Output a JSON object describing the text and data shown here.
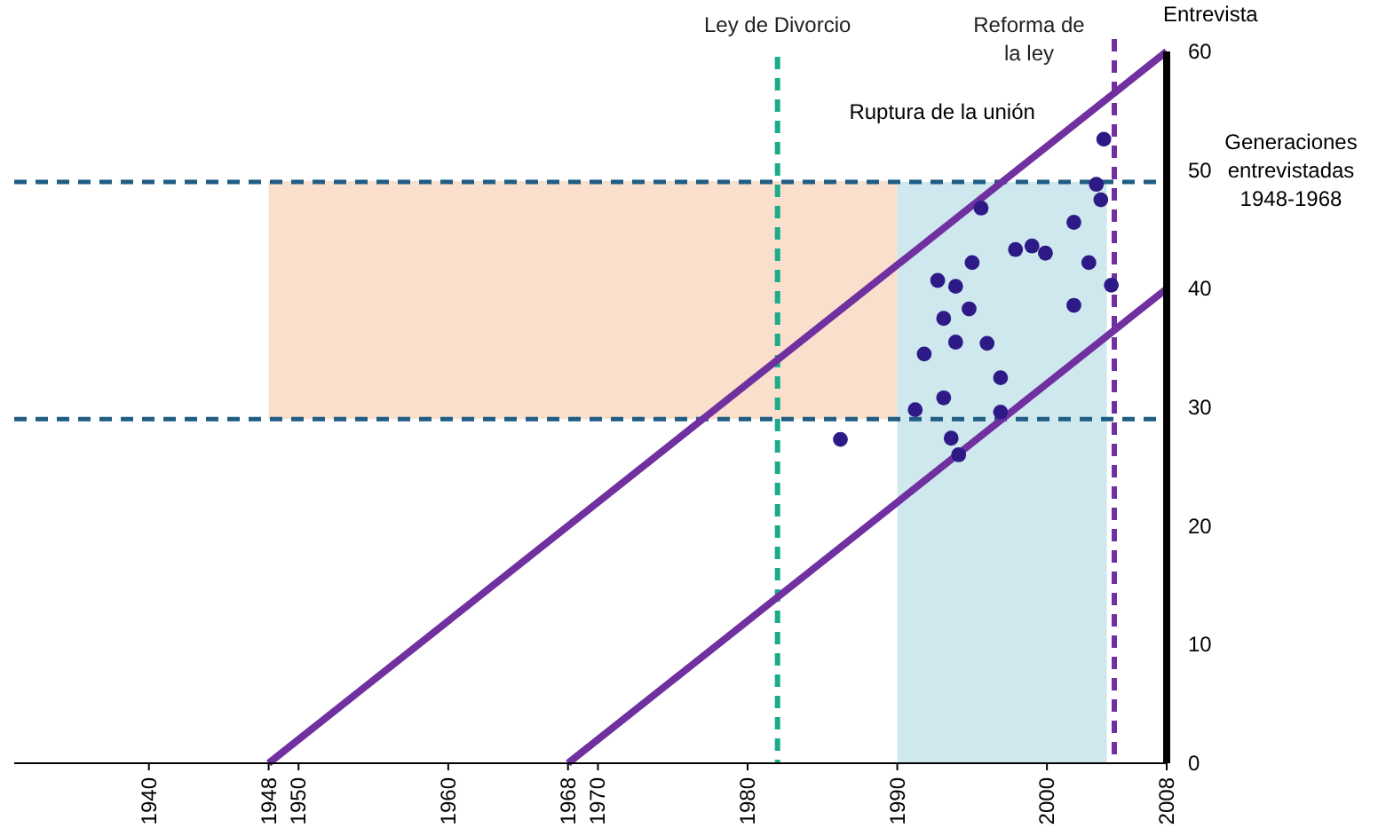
{
  "chart_data": {
    "type": "scatter",
    "ylabel": "Generaciones entrevistadas 1948-1968",
    "xlim": [
      1931,
      2008
    ],
    "ylim": [
      0,
      60
    ],
    "xticks": [
      1940,
      1948,
      1950,
      1960,
      1968,
      1970,
      1980,
      1990,
      2000,
      2008
    ],
    "yticks": [
      0,
      10,
      20,
      30,
      40,
      50,
      60
    ],
    "series": [
      {
        "type": "line",
        "color": "#f9dfcc",
        "x": [
          1948,
          1990
        ],
        "values": [
          49,
          49
        ],
        "lower": [
          29,
          29
        ],
        "upper": [
          49,
          49
        ]
      },
      {
        "type": "area",
        "color": "#cfe8ee",
        "x": [
          1990,
          2004
        ],
        "values": [
          49,
          49
        ]
      },
      {
        "type": "line",
        "color": "#7030a0",
        "x": [
          1948,
          2008
        ],
        "values": [
          0,
          60
        ]
      },
      {
        "type": "line",
        "color": "#7030a0",
        "x": [
          1968,
          2008
        ],
        "values": [
          0,
          40
        ]
      },
      {
        "color": "#2e1a87",
        "marker": "circle",
        "x": [
          1995.6,
          1997.9,
          1999.0,
          1999.9,
          2001.8,
          2002.8,
          2004.3,
          2001.8,
          1995.0,
          1992.7,
          1993.9,
          1993.1,
          1994.8,
          1993.9,
          1996.0,
          1991.8,
          1996.9,
          1993.1,
          1991.2,
          1996.9,
          1986.2,
          1993.6,
          1994.1,
          2003.3,
          2003.6,
          2003.8
        ],
        "values": [
          46.8,
          43.3,
          43.6,
          43.0,
          45.6,
          42.2,
          40.3,
          38.6,
          42.2,
          40.7,
          40.2,
          37.5,
          38.3,
          35.5,
          35.4,
          34.5,
          32.5,
          30.8,
          29.8,
          29.6,
          27.3,
          27.4,
          26.0,
          48.8,
          47.5,
          52.6
        ]
      }
    ],
    "ref_lines": [
      {
        "axis": "y",
        "value": 49,
        "color": "#1f5d85",
        "line_style": "dashed"
      },
      {
        "axis": "y",
        "value": 29,
        "color": "#1f5d85",
        "line_style": "dashed"
      },
      {
        "axis": "x",
        "value": 1982,
        "label": "Ley de Divorcio",
        "color": "#1aab8a",
        "line_style": "dashed"
      },
      {
        "axis": "x",
        "value": 2004.5,
        "label": "Reforma de la ley",
        "color": "#7030a0",
        "line_style": "dashed"
      }
    ],
    "annotations": [
      "Ruptura de la unión",
      "Entrevista"
    ]
  }
}
